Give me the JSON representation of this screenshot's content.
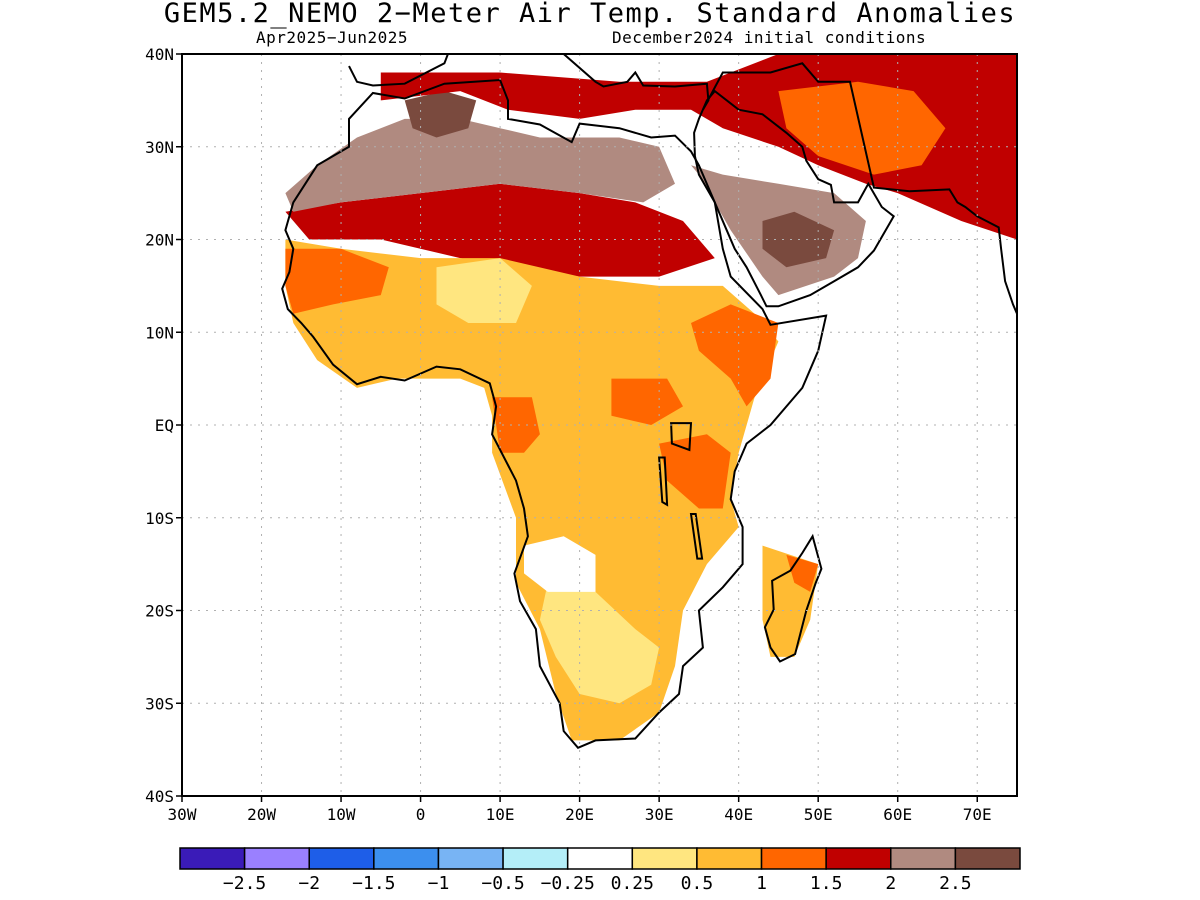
{
  "title": "GEM5.2_NEMO 2−Meter Air Temp. Standard Anomalies",
  "subtitle_left": "Apr2025−Jun2025",
  "subtitle_right": "December2024 initial conditions",
  "map": {
    "lon_range": [
      -30,
      75
    ],
    "lat_range": [
      -40,
      40
    ],
    "grid": true,
    "y_ticks": [
      {
        "lat": 40,
        "label": "40N"
      },
      {
        "lat": 30,
        "label": "30N"
      },
      {
        "lat": 20,
        "label": "20N"
      },
      {
        "lat": 10,
        "label": "10N"
      },
      {
        "lat": 0,
        "label": "EQ"
      },
      {
        "lat": -10,
        "label": "10S"
      },
      {
        "lat": -20,
        "label": "20S"
      },
      {
        "lat": -30,
        "label": "30S"
      },
      {
        "lat": -40,
        "label": "40S"
      }
    ],
    "x_ticks": [
      {
        "lon": -30,
        "label": "30W"
      },
      {
        "lon": -20,
        "label": "20W"
      },
      {
        "lon": -10,
        "label": "10W"
      },
      {
        "lon": 0,
        "label": "0"
      },
      {
        "lon": 10,
        "label": "10E"
      },
      {
        "lon": 20,
        "label": "20E"
      },
      {
        "lon": 30,
        "label": "30E"
      },
      {
        "lon": 40,
        "label": "40E"
      },
      {
        "lon": 50,
        "label": "50E"
      },
      {
        "lon": 60,
        "label": "60E"
      },
      {
        "lon": 70,
        "label": "70E"
      }
    ],
    "anomaly_regions": [
      {
        "level": "1.5-2",
        "color": "#c00000",
        "lonlat": [
          [
            -17,
            23
          ],
          [
            -10,
            24
          ],
          [
            0,
            25
          ],
          [
            10,
            26
          ],
          [
            20,
            25
          ],
          [
            27,
            24
          ],
          [
            33,
            22
          ],
          [
            37,
            18
          ],
          [
            30,
            16
          ],
          [
            20,
            16
          ],
          [
            12,
            17
          ],
          [
            5,
            18
          ],
          [
            -5,
            20
          ],
          [
            -14,
            20
          ]
        ]
      },
      {
        "level": "2-2.5",
        "color": "#b08a80",
        "lonlat": [
          [
            -13,
            28
          ],
          [
            -8,
            31
          ],
          [
            -2,
            33
          ],
          [
            5,
            33
          ],
          [
            10,
            32
          ],
          [
            15,
            31
          ],
          [
            20,
            31
          ],
          [
            25,
            31
          ],
          [
            30,
            30
          ],
          [
            32,
            26
          ],
          [
            28,
            24
          ],
          [
            20,
            25
          ],
          [
            10,
            26
          ],
          [
            0,
            25
          ],
          [
            -10,
            24
          ],
          [
            -16,
            23
          ],
          [
            -17,
            25
          ]
        ]
      },
      {
        "level": ">2.5",
        "color": "#7a4a3e",
        "lonlat": [
          [
            -2,
            35
          ],
          [
            3,
            36
          ],
          [
            7,
            35
          ],
          [
            6,
            32
          ],
          [
            2,
            31
          ],
          [
            -1,
            32
          ]
        ]
      },
      {
        "level": "2-2.5",
        "color": "#b08a80",
        "lonlat": [
          [
            34,
            28
          ],
          [
            38,
            27
          ],
          [
            45,
            26
          ],
          [
            52,
            25
          ],
          [
            56,
            22
          ],
          [
            55,
            18
          ],
          [
            52,
            16
          ],
          [
            45,
            14
          ],
          [
            43,
            16
          ],
          [
            39,
            21
          ],
          [
            35,
            27
          ]
        ]
      },
      {
        "level": ">2.5",
        "color": "#7a4a3e",
        "lonlat": [
          [
            43,
            22
          ],
          [
            47,
            23
          ],
          [
            52,
            21
          ],
          [
            51,
            18
          ],
          [
            46,
            17
          ],
          [
            43,
            19
          ]
        ]
      },
      {
        "level": "1.5-2",
        "color": "#c00000",
        "lonlat": [
          [
            -5,
            38
          ],
          [
            10,
            38
          ],
          [
            25,
            37
          ],
          [
            36,
            37
          ],
          [
            45,
            40
          ],
          [
            75,
            40
          ],
          [
            75,
            20
          ],
          [
            68,
            22
          ],
          [
            60,
            25
          ],
          [
            56,
            26
          ],
          [
            50,
            28
          ],
          [
            45,
            30
          ],
          [
            38,
            32
          ],
          [
            34,
            34
          ],
          [
            27,
            34
          ],
          [
            20,
            33
          ],
          [
            11,
            34
          ],
          [
            5,
            36
          ],
          [
            -5,
            35
          ]
        ]
      },
      {
        "level": "1-1.5",
        "color": "#ff6600",
        "lonlat": [
          [
            45,
            36
          ],
          [
            55,
            37
          ],
          [
            62,
            36
          ],
          [
            66,
            32
          ],
          [
            63,
            28
          ],
          [
            57,
            27
          ],
          [
            50,
            29
          ],
          [
            46,
            32
          ]
        ]
      },
      {
        "level": "0.5-1",
        "color": "#ffbb33",
        "lonlat": [
          [
            -17,
            20
          ],
          [
            -10,
            19
          ],
          [
            0,
            18
          ],
          [
            10,
            18
          ],
          [
            20,
            16
          ],
          [
            30,
            15
          ],
          [
            38,
            15
          ],
          [
            42,
            12
          ],
          [
            45,
            9
          ],
          [
            42,
            3
          ],
          [
            40,
            -3
          ],
          [
            39,
            -8
          ],
          [
            40,
            -11
          ],
          [
            36,
            -15
          ],
          [
            33,
            -20
          ],
          [
            32,
            -26
          ],
          [
            30,
            -31
          ],
          [
            25,
            -34
          ],
          [
            19,
            -34
          ],
          [
            17,
            -29
          ],
          [
            15,
            -22
          ],
          [
            12,
            -17
          ],
          [
            12,
            -10
          ],
          [
            9,
            -3
          ],
          [
            9,
            1
          ],
          [
            8,
            4
          ],
          [
            5,
            5
          ],
          [
            -3,
            5
          ],
          [
            -8,
            4
          ],
          [
            -13,
            7
          ],
          [
            -16,
            11
          ],
          [
            -17,
            15
          ]
        ]
      },
      {
        "level": "1-1.5",
        "color": "#ff6600",
        "lonlat": [
          [
            -17,
            19
          ],
          [
            -10,
            19
          ],
          [
            -4,
            17
          ],
          [
            -5,
            14
          ],
          [
            -11,
            13
          ],
          [
            -16,
            12
          ],
          [
            -17,
            15
          ]
        ]
      },
      {
        "level": "1-1.5",
        "color": "#ff6600",
        "lonlat": [
          [
            9,
            3
          ],
          [
            14,
            3
          ],
          [
            15,
            -1
          ],
          [
            13,
            -3
          ],
          [
            10,
            -3
          ]
        ]
      },
      {
        "level": "1-1.5",
        "color": "#ff6600",
        "lonlat": [
          [
            34,
            11
          ],
          [
            39,
            13
          ],
          [
            45,
            11
          ],
          [
            44,
            5
          ],
          [
            41,
            2
          ],
          [
            39,
            5
          ],
          [
            35,
            8
          ]
        ]
      },
      {
        "level": "1-1.5",
        "color": "#ff6600",
        "lonlat": [
          [
            30,
            -2
          ],
          [
            36,
            -1
          ],
          [
            39,
            -3
          ],
          [
            38,
            -9
          ],
          [
            35,
            -9
          ],
          [
            31,
            -6
          ]
        ]
      },
      {
        "level": "1-1.5",
        "color": "#ff6600",
        "lonlat": [
          [
            24,
            5
          ],
          [
            31,
            5
          ],
          [
            33,
            2
          ],
          [
            29,
            0
          ],
          [
            24,
            1
          ]
        ]
      },
      {
        "level": "0.25-0.5",
        "color": "#ffe680",
        "lonlat": [
          [
            2,
            17
          ],
          [
            10,
            18
          ],
          [
            14,
            15
          ],
          [
            12,
            11
          ],
          [
            6,
            11
          ],
          [
            2,
            13
          ]
        ]
      },
      {
        "level": "0.25-0.5",
        "color": "#ffe680",
        "lonlat": [
          [
            16,
            -17
          ],
          [
            22,
            -18
          ],
          [
            27,
            -22
          ],
          [
            30,
            -24
          ],
          [
            29,
            -28
          ],
          [
            25,
            -30
          ],
          [
            20,
            -29
          ],
          [
            17,
            -25
          ],
          [
            15,
            -21
          ]
        ]
      },
      {
        "level": "<0.25",
        "color": "#ffffff",
        "lonlat": [
          [
            13,
            -13
          ],
          [
            18,
            -12
          ],
          [
            22,
            -14
          ],
          [
            22,
            -18
          ],
          [
            16,
            -18
          ],
          [
            13,
            -16
          ]
        ]
      },
      {
        "level": "0.5-1",
        "color": "#ffbb33",
        "lonlat": [
          [
            43,
            -13
          ],
          [
            50,
            -15
          ],
          [
            49,
            -21
          ],
          [
            47,
            -25
          ],
          [
            44,
            -25
          ],
          [
            43,
            -21
          ]
        ]
      },
      {
        "level": "1-1.5",
        "color": "#ff6600",
        "lonlat": [
          [
            46,
            -14
          ],
          [
            50,
            -15
          ],
          [
            49,
            -18
          ],
          [
            47,
            -17
          ]
        ]
      }
    ]
  },
  "colorbar": {
    "colors": [
      "#3a1bb8",
      "#9a80ff",
      "#1e5ee8",
      "#3c8fee",
      "#78b4f4",
      "#b4eef8",
      "#ffffff",
      "#ffe680",
      "#ffbb33",
      "#ff6600",
      "#c00000",
      "#b08a80",
      "#7a4a3e"
    ],
    "labels": [
      "−2.5",
      "−2",
      "−1.5",
      "−1",
      "−0.5",
      "−0.25",
      "0.25",
      "0.5",
      "1",
      "1.5",
      "2",
      "2.5"
    ]
  }
}
